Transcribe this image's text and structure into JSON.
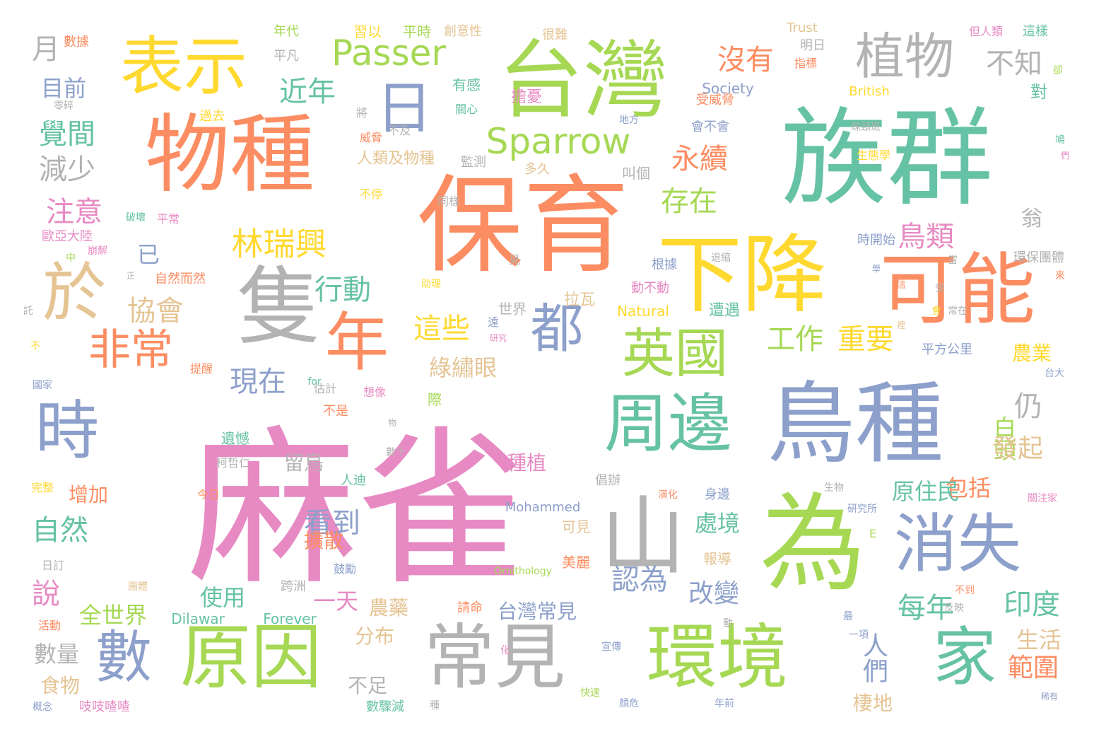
{
  "palette": {
    "pink": "#e78ac3",
    "green_teal": "#66c2a5",
    "orange": "#fc8d62",
    "blue": "#8da0cb",
    "lime": "#a6d854",
    "yellow": "#ffd92f",
    "tan": "#e5c494",
    "gray": "#b3b3b3"
  },
  "words": [
    {
      "text": "麻雀",
      "color": "pink"
    },
    {
      "text": "保育",
      "color": "orange"
    },
    {
      "text": "族群",
      "color": "green_teal"
    },
    {
      "text": "台灣",
      "color": "lime"
    },
    {
      "text": "物種",
      "color": "orange"
    },
    {
      "text": "鳥種",
      "color": "blue"
    },
    {
      "text": "為",
      "color": "lime"
    },
    {
      "text": "下降",
      "color": "yellow"
    },
    {
      "text": "可能",
      "color": "orange"
    },
    {
      "text": "隻",
      "color": "gray"
    },
    {
      "text": "山",
      "color": "gray"
    },
    {
      "text": "原因",
      "color": "lime"
    },
    {
      "text": "常見",
      "color": "gray"
    },
    {
      "text": "環境",
      "color": "lime"
    },
    {
      "text": "表示",
      "color": "yellow"
    },
    {
      "text": "周邊",
      "color": "green_teal"
    },
    {
      "text": "消失",
      "color": "blue"
    },
    {
      "text": "家",
      "color": "green_teal"
    },
    {
      "text": "年",
      "color": "orange"
    },
    {
      "text": "於",
      "color": "tan"
    },
    {
      "text": "英國",
      "color": "lime"
    },
    {
      "text": "都",
      "color": "blue"
    },
    {
      "text": "時",
      "color": "blue"
    },
    {
      "text": "數",
      "color": "blue"
    },
    {
      "text": "植物",
      "color": "gray"
    },
    {
      "text": "非常",
      "color": "orange"
    },
    {
      "text": "日",
      "color": "blue"
    },
    {
      "text": "Passer",
      "color": "lime"
    },
    {
      "text": "Sparrow",
      "color": "lime"
    },
    {
      "text": "林瑞興",
      "color": "yellow"
    },
    {
      "text": "沒有",
      "color": "orange"
    },
    {
      "text": "不知",
      "color": "gray"
    },
    {
      "text": "永續",
      "color": "orange"
    },
    {
      "text": "存在",
      "color": "lime"
    },
    {
      "text": "近年",
      "color": "green_teal"
    },
    {
      "text": "行動",
      "color": "green_teal"
    },
    {
      "text": "協會",
      "color": "tan"
    },
    {
      "text": "現在",
      "color": "blue"
    },
    {
      "text": "這些",
      "color": "yellow"
    },
    {
      "text": "工作",
      "color": "lime"
    },
    {
      "text": "重要",
      "color": "yellow"
    },
    {
      "text": "鳥類",
      "color": "pink"
    },
    {
      "text": "仍",
      "color": "gray"
    },
    {
      "text": "自然",
      "color": "green_teal"
    },
    {
      "text": "看到",
      "color": "blue"
    },
    {
      "text": "認為",
      "color": "blue"
    },
    {
      "text": "改變",
      "color": "blue"
    },
    {
      "text": "每年",
      "color": "green_teal"
    },
    {
      "text": "人們",
      "color": "blue"
    },
    {
      "text": "印度",
      "color": "green_teal"
    },
    {
      "text": "範圍",
      "color": "orange"
    },
    {
      "text": "白頭",
      "color": "lime"
    },
    {
      "text": "發起",
      "color": "tan"
    },
    {
      "text": "包括",
      "color": "orange"
    },
    {
      "text": "原住民",
      "color": "green_teal"
    },
    {
      "text": "處境",
      "color": "green_teal"
    },
    {
      "text": "綠繡眼",
      "color": "tan"
    },
    {
      "text": "覺間",
      "color": "green_teal"
    },
    {
      "text": "減少",
      "color": "gray"
    },
    {
      "text": "注意",
      "color": "pink"
    },
    {
      "text": "月",
      "color": "gray"
    },
    {
      "text": "目前",
      "color": "blue"
    },
    {
      "text": "已",
      "color": "blue"
    },
    {
      "text": "一天",
      "color": "pink"
    },
    {
      "text": "全世界",
      "color": "lime"
    },
    {
      "text": "使用",
      "color": "green_teal"
    },
    {
      "text": "說",
      "color": "pink"
    },
    {
      "text": "數量",
      "color": "gray"
    },
    {
      "text": "食物",
      "color": "tan"
    },
    {
      "text": "增加",
      "color": "orange"
    },
    {
      "text": "留鳥",
      "color": "gray"
    },
    {
      "text": "種植",
      "color": "pink"
    },
    {
      "text": "擴散",
      "color": "orange"
    },
    {
      "text": "農藥",
      "color": "tan"
    },
    {
      "text": "台灣常見",
      "color": "blue"
    },
    {
      "text": "分布",
      "color": "tan"
    },
    {
      "text": "不足",
      "color": "gray"
    },
    {
      "text": "棲地",
      "color": "tan"
    },
    {
      "text": "生活",
      "color": "tan"
    },
    {
      "text": "農業",
      "color": "yellow"
    },
    {
      "text": "翁",
      "color": "gray"
    },
    {
      "text": "對",
      "color": "green_teal"
    },
    {
      "text": "Dilawar",
      "color": "green_teal"
    },
    {
      "text": "Forever",
      "color": "green_teal"
    },
    {
      "text": "Society",
      "color": "blue"
    },
    {
      "text": "British",
      "color": "yellow"
    },
    {
      "text": "Trust",
      "color": "tan"
    },
    {
      "text": "Natural",
      "color": "yellow"
    },
    {
      "text": "Mohammed",
      "color": "blue"
    },
    {
      "text": "Ornithology",
      "color": "lime"
    },
    {
      "text": "for",
      "color": "green_teal"
    },
    {
      "text": "擔憂",
      "color": "pink"
    },
    {
      "text": "習以",
      "color": "yellow"
    },
    {
      "text": "平時",
      "color": "lime"
    },
    {
      "text": "創意性",
      "color": "tan"
    },
    {
      "text": "很難",
      "color": "tan"
    },
    {
      "text": "年代",
      "color": "lime"
    },
    {
      "text": "平凡",
      "color": "gray"
    },
    {
      "text": "明日",
      "color": "gray"
    },
    {
      "text": "指標",
      "color": "orange"
    },
    {
      "text": "但人類",
      "color": "pink"
    },
    {
      "text": "這樣",
      "color": "green_teal"
    },
    {
      "text": "有感",
      "color": "green_teal"
    },
    {
      "text": "人類及物種",
      "color": "tan"
    },
    {
      "text": "拉瓦",
      "color": "tan"
    },
    {
      "text": "世界",
      "color": "gray"
    },
    {
      "text": "根據",
      "color": "blue"
    },
    {
      "text": "遭遇",
      "color": "green_teal"
    },
    {
      "text": "鼓勵",
      "color": "blue"
    },
    {
      "text": "跨洲",
      "color": "gray"
    },
    {
      "text": "可見",
      "color": "tan"
    },
    {
      "text": "美麗",
      "color": "orange"
    },
    {
      "text": "報導",
      "color": "tan"
    },
    {
      "text": "身邊",
      "color": "blue"
    },
    {
      "text": "倡辦",
      "color": "gray"
    },
    {
      "text": "請命",
      "color": "orange"
    },
    {
      "text": "吱吱喳喳",
      "color": "pink"
    },
    {
      "text": "人迪",
      "color": "green_teal"
    },
    {
      "text": "遺憾",
      "color": "green_teal"
    },
    {
      "text": "數驟減",
      "color": "green_teal"
    },
    {
      "text": "叫個",
      "color": "gray"
    },
    {
      "text": "多久",
      "color": "tan"
    },
    {
      "text": "平方公里",
      "color": "blue"
    },
    {
      "text": "環保團體",
      "color": "gray"
    },
    {
      "text": "數據",
      "color": "orange"
    },
    {
      "text": "零碎",
      "color": "gray"
    },
    {
      "text": "過去",
      "color": "yellow"
    },
    {
      "text": "關心",
      "color": "green_teal"
    },
    {
      "text": "不及",
      "color": "gray"
    },
    {
      "text": "監測",
      "color": "gray"
    },
    {
      "text": "威脅",
      "color": "orange"
    },
    {
      "text": "受威脅",
      "color": "orange"
    },
    {
      "text": "會不會",
      "color": "blue"
    },
    {
      "text": "時開始",
      "color": "blue"
    },
    {
      "text": "生態學",
      "color": "yellow"
    },
    {
      "text": "地方",
      "color": "blue"
    },
    {
      "text": "歐亞大陸",
      "color": "pink"
    },
    {
      "text": "破壞",
      "color": "green_teal"
    },
    {
      "text": "平常",
      "color": "pink"
    },
    {
      "text": "崩解",
      "color": "pink"
    },
    {
      "text": "自然而然",
      "color": "orange"
    },
    {
      "text": "動不動",
      "color": "pink"
    },
    {
      "text": "退縮",
      "color": "gray"
    },
    {
      "text": "研究所",
      "color": "blue"
    },
    {
      "text": "研究",
      "color": "pink"
    },
    {
      "text": "提醒",
      "color": "orange"
    },
    {
      "text": "估計",
      "color": "gray"
    },
    {
      "text": "想像",
      "color": "pink"
    },
    {
      "text": "國家",
      "color": "blue"
    },
    {
      "text": "不是",
      "color": "orange"
    },
    {
      "text": "柯哲仁",
      "color": "gray"
    },
    {
      "text": "數千",
      "color": "gray"
    },
    {
      "text": "完整",
      "color": "yellow"
    },
    {
      "text": "今日",
      "color": "orange"
    },
    {
      "text": "演化",
      "color": "orange"
    },
    {
      "text": "生物",
      "color": "gray"
    },
    {
      "text": "關注家",
      "color": "pink"
    },
    {
      "text": "日訂",
      "color": "gray"
    },
    {
      "text": "團體",
      "color": "tan"
    },
    {
      "text": "活動",
      "color": "orange"
    },
    {
      "text": "概念",
      "color": "blue"
    },
    {
      "text": "宣傳",
      "color": "blue"
    },
    {
      "text": "快速",
      "color": "lime"
    },
    {
      "text": "顏危",
      "color": "blue"
    },
    {
      "text": "年前",
      "color": "blue"
    },
    {
      "text": "一項",
      "color": "blue"
    },
    {
      "text": "反映",
      "color": "gray"
    },
    {
      "text": "不到",
      "color": "orange"
    },
    {
      "text": "稀有",
      "color": "blue"
    },
    {
      "text": "台大",
      "color": "blue"
    },
    {
      "text": "同樣",
      "color": "gray"
    },
    {
      "text": "助理",
      "color": "yellow"
    },
    {
      "text": "不停",
      "color": "yellow"
    },
    {
      "text": "珠頸斑",
      "color": "gray"
    },
    {
      "text": "中",
      "color": "lime"
    },
    {
      "text": "正",
      "color": "gray"
    },
    {
      "text": "託",
      "color": "gray"
    },
    {
      "text": "不",
      "color": "yellow"
    },
    {
      "text": "將",
      "color": "gray"
    },
    {
      "text": "見",
      "color": "gray"
    },
    {
      "text": "際",
      "color": "lime"
    },
    {
      "text": "物",
      "color": "gray"
    },
    {
      "text": "遠",
      "color": "blue"
    },
    {
      "text": "E",
      "color": "lime"
    },
    {
      "text": "信",
      "color": "orange"
    },
    {
      "text": "當",
      "color": "gray"
    },
    {
      "text": "學",
      "color": "blue"
    },
    {
      "text": "受",
      "color": "gray"
    },
    {
      "text": "會",
      "color": "yellow"
    },
    {
      "text": "常在",
      "color": "gray"
    },
    {
      "text": "裡",
      "color": "tan"
    },
    {
      "text": "來",
      "color": "orange"
    },
    {
      "text": "卻",
      "color": "lime"
    },
    {
      "text": "鳩",
      "color": "green_teal"
    },
    {
      "text": "們",
      "color": "pink"
    },
    {
      "text": "動",
      "color": "gray"
    },
    {
      "text": "最",
      "color": "blue"
    },
    {
      "text": "化",
      "color": "pink"
    },
    {
      "text": "種",
      "color": "gray"
    }
  ]
}
